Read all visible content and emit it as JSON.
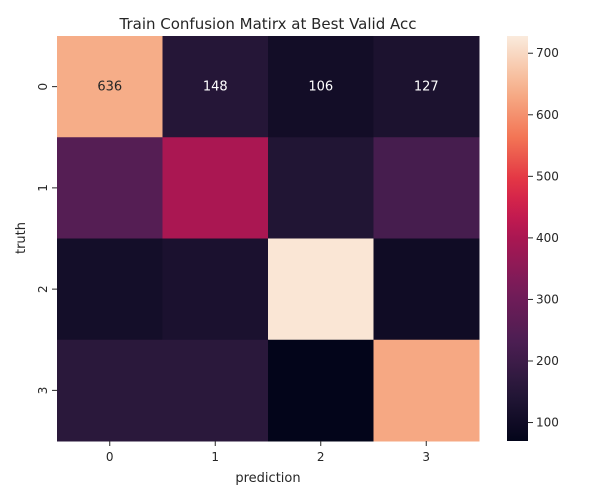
{
  "chart_data": {
    "type": "heatmap",
    "title": "Train Confusion Matirx at Best Valid Acc",
    "xlabel": "prediction",
    "ylabel": "truth",
    "x_categories": [
      "0",
      "1",
      "2",
      "3"
    ],
    "y_categories": [
      "0",
      "1",
      "2",
      "3"
    ],
    "values": [
      [
        636,
        148,
        106,
        127
      ],
      [
        250,
        400,
        140,
        220
      ],
      [
        110,
        125,
        720,
        100
      ],
      [
        160,
        160,
        70,
        630
      ]
    ],
    "annotated_rows": [
      0
    ],
    "colorbar": {
      "range": [
        70,
        728
      ],
      "ticks": [
        100,
        200,
        300,
        400,
        500,
        600,
        700
      ]
    },
    "colormap": "rocket",
    "grid": false,
    "legend": "colorbar-right"
  }
}
